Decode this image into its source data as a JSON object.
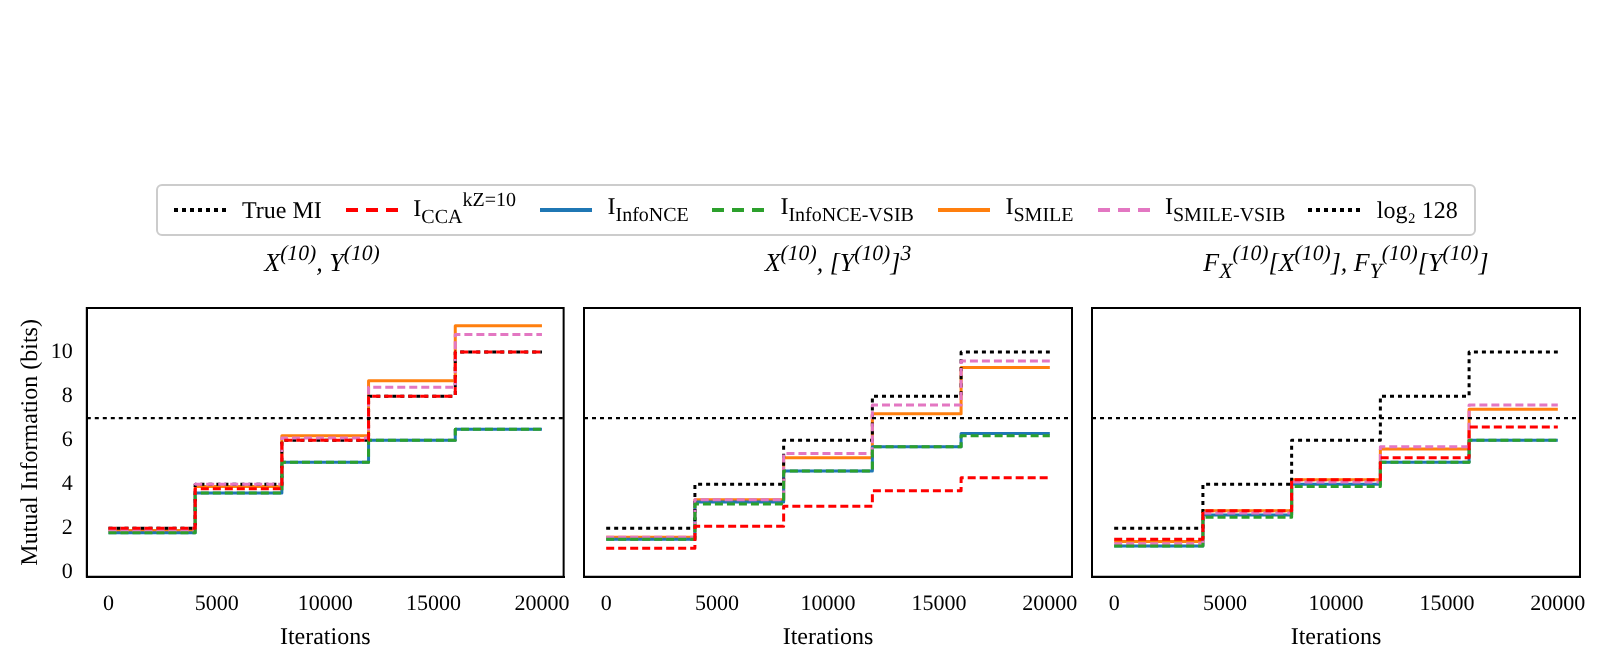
{
  "chart_data": [
    {
      "type": "step",
      "title": "X$^{(10)}$, Y$^{(10)}$",
      "xlabel": "Iterations",
      "ylabel": "Mutual Information (bits)",
      "x": [
        0,
        4000,
        8000,
        12000,
        16000,
        20000
      ],
      "xlim": [
        -1000,
        21000
      ],
      "xticks": [
        0,
        5000,
        10000,
        15000,
        20000
      ],
      "ylim": [
        -0.2,
        12
      ],
      "yticks": [
        0,
        2,
        4,
        6,
        8,
        10
      ],
      "grid": false,
      "legend": "top",
      "marker": "none",
      "series": [
        {
          "name": "True MI",
          "color": "#000000",
          "line_style": "dotted",
          "values": [
            2,
            4,
            6,
            8,
            10,
            10
          ]
        },
        {
          "name": "I$_{CCA}$$^{kZ=10}$",
          "color": "#ff0000",
          "line_style": "dashed",
          "values": [
            2,
            3.8,
            6,
            8,
            10,
            10
          ]
        },
        {
          "name": "I$_{InfoNCE}$",
          "color": "#1f77b4",
          "line_style": "solid",
          "values": [
            1.8,
            3.6,
            5,
            6,
            6.5,
            6.5
          ]
        },
        {
          "name": "I$_{InfoNCE-VSIB}$",
          "color": "#2ca02c",
          "line_style": "dashed",
          "values": [
            1.8,
            3.6,
            5,
            6,
            6.5,
            6.5
          ]
        },
        {
          "name": "I$_{SMILE}$",
          "color": "#ff7f0e",
          "line_style": "solid",
          "values": [
            1.9,
            3.9,
            6.2,
            8.7,
            11.2,
            11.2
          ]
        },
        {
          "name": "I$_{SMILE-VSIB}$",
          "color": "#e377c2",
          "line_style": "dashed",
          "values": [
            1.9,
            4,
            6.1,
            8.4,
            10.8,
            10.8
          ]
        }
      ],
      "ref_lines": [
        {
          "axis": "y",
          "value": 7,
          "label": "log₂ 128",
          "color": "#000000",
          "line_style": "dotted"
        }
      ]
    },
    {
      "type": "step",
      "title": "X$^{(10)}$, [Y$^{(10)}$]$^{3}$",
      "xlabel": "Iterations",
      "x": [
        0,
        4000,
        8000,
        12000,
        16000,
        20000
      ],
      "xlim": [
        -1000,
        21000
      ],
      "xticks": [
        0,
        5000,
        10000,
        15000,
        20000
      ],
      "ylim": [
        -0.2,
        12
      ],
      "yticks": [
        0,
        2,
        4,
        6,
        8,
        10
      ],
      "tick_labels": "x",
      "grid": false,
      "marker": "none",
      "series": [
        {
          "color": "#000000",
          "line_style": "dotted",
          "values": [
            2,
            4,
            6,
            8,
            10,
            10
          ]
        },
        {
          "color": "#ff0000",
          "line_style": "dashed",
          "values": [
            1.1,
            2.1,
            3,
            3.7,
            4.3,
            4.3
          ]
        },
        {
          "color": "#1f77b4",
          "line_style": "solid",
          "values": [
            1.5,
            3.2,
            4.6,
            5.7,
            6.3,
            6.3
          ]
        },
        {
          "color": "#2ca02c",
          "line_style": "dashed",
          "values": [
            1.5,
            3.1,
            4.6,
            5.7,
            6.2,
            6.2
          ]
        },
        {
          "color": "#ff7f0e",
          "line_style": "solid",
          "values": [
            1.6,
            3.3,
            5.2,
            7.2,
            9.3,
            9.3
          ]
        },
        {
          "color": "#e377c2",
          "line_style": "dashed",
          "values": [
            1.6,
            3.3,
            5.4,
            7.6,
            9.6,
            9.6
          ]
        }
      ],
      "ref_lines": [
        {
          "axis": "y",
          "value": 7,
          "color": "#000000",
          "line_style": "dotted"
        }
      ]
    },
    {
      "type": "step",
      "title": "F$_{X}$$^{(10)}$[X$^{(10)}$], F$_{Y}$$^{(10)}$[Y$^{(10)}$]",
      "xlabel": "Iterations",
      "x": [
        0,
        4000,
        8000,
        12000,
        16000,
        20000
      ],
      "xlim": [
        -1000,
        21000
      ],
      "xticks": [
        0,
        5000,
        10000,
        15000,
        20000
      ],
      "ylim": [
        -0.2,
        12
      ],
      "yticks": [
        0,
        2,
        4,
        6,
        8,
        10
      ],
      "tick_labels": "x",
      "grid": false,
      "marker": "none",
      "series": [
        {
          "color": "#000000",
          "line_style": "dotted",
          "values": [
            2,
            4,
            6,
            8,
            10,
            10
          ]
        },
        {
          "color": "#ff0000",
          "line_style": "dashed",
          "values": [
            1.5,
            2.8,
            4.2,
            5.2,
            6.6,
            6.6
          ]
        },
        {
          "color": "#1f77b4",
          "line_style": "solid",
          "values": [
            1.2,
            2.6,
            4,
            5,
            6,
            6
          ]
        },
        {
          "color": "#2ca02c",
          "line_style": "dashed",
          "values": [
            1.2,
            2.5,
            3.9,
            5,
            6,
            6
          ]
        },
        {
          "color": "#ff7f0e",
          "line_style": "solid",
          "values": [
            1.4,
            2.8,
            4.2,
            5.6,
            7.4,
            7.4
          ]
        },
        {
          "color": "#e377c2",
          "line_style": "dashed",
          "values": [
            1.3,
            2.7,
            4.1,
            5.7,
            7.6,
            7.6
          ]
        }
      ],
      "ref_lines": [
        {
          "axis": "y",
          "value": 7,
          "color": "#000000",
          "line_style": "dotted"
        }
      ]
    }
  ]
}
